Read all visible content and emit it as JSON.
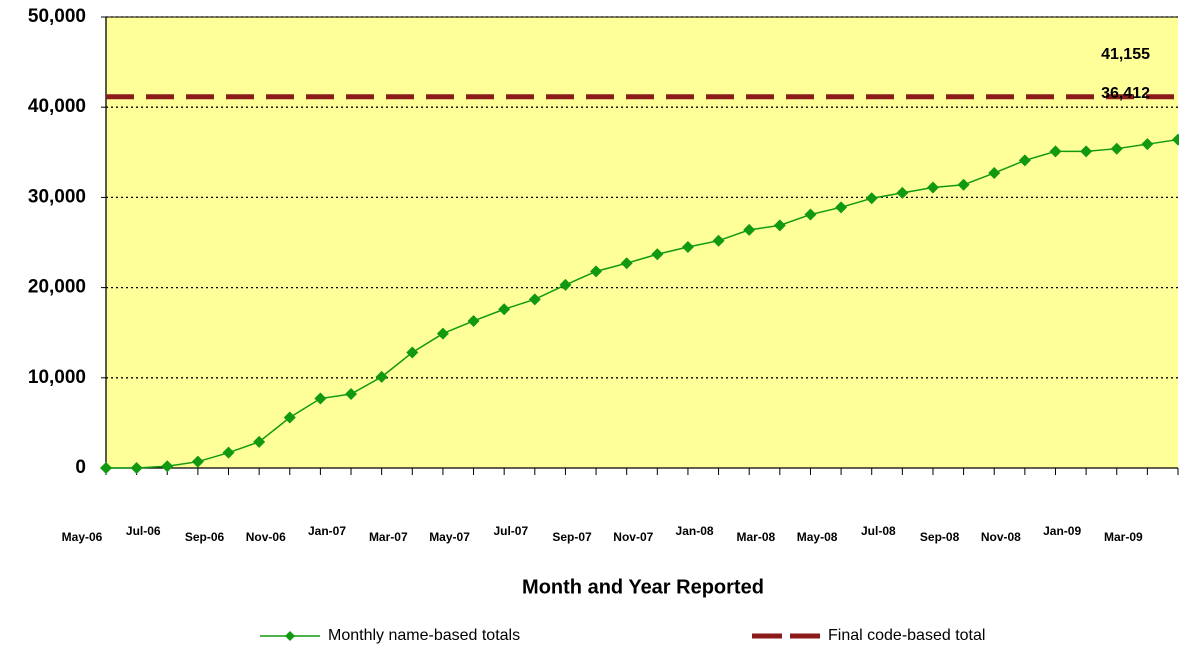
{
  "chart_data": {
    "type": "line",
    "x_label": "Month and Year Reported",
    "categories": [
      "May-06",
      null,
      "Jul-06",
      null,
      "Sep-06",
      null,
      "Nov-06",
      null,
      "Jan-07",
      null,
      "Mar-07",
      null,
      "May-07",
      null,
      "Jul-07",
      null,
      "Sep-07",
      null,
      "Nov-07",
      null,
      "Jan-08",
      null,
      "Mar-08",
      null,
      "May-08",
      null,
      "Jul-08",
      null,
      "Sep-08",
      null,
      "Nov-08",
      null,
      "Jan-09",
      null,
      "Mar-09",
      null
    ],
    "series": [
      {
        "name": "Monthly name-based totals",
        "color": "#119911",
        "values": [
          0,
          0,
          200,
          700,
          1700,
          2900,
          5600,
          7700,
          8200,
          10100,
          12800,
          14900,
          16300,
          17600,
          18700,
          20300,
          21800,
          22700,
          23700,
          24500,
          25200,
          26400,
          26900,
          28100,
          28900,
          29900,
          30500,
          31100,
          31400,
          32700,
          34100,
          35100,
          35100,
          35400,
          35900,
          36412
        ],
        "value_labels": [
          null,
          null,
          null,
          null,
          null,
          null,
          null,
          null,
          null,
          null,
          null,
          null,
          null,
          null,
          null,
          null,
          null,
          null,
          null,
          null,
          null,
          null,
          null,
          null,
          null,
          null,
          null,
          null,
          null,
          null,
          null,
          null,
          null,
          null,
          null,
          "36,412"
        ]
      }
    ],
    "reference_line": {
      "name": "Final code-based total",
      "color": "#8b1a1a",
      "value": 41155,
      "value_label": "41,155"
    },
    "ylim": [
      0,
      50000
    ],
    "yticks": [
      0,
      {
        "value": 10000,
        "label": "10,000"
      },
      {
        "value": 20000,
        "label": "20,000"
      },
      {
        "value": 30000,
        "label": "30,000"
      },
      {
        "value": 40000,
        "label": "40,000"
      },
      {
        "value": 50000,
        "label": "50,000"
      }
    ],
    "grid": true,
    "plot_background": "#ffff99",
    "legend": "bottom"
  }
}
